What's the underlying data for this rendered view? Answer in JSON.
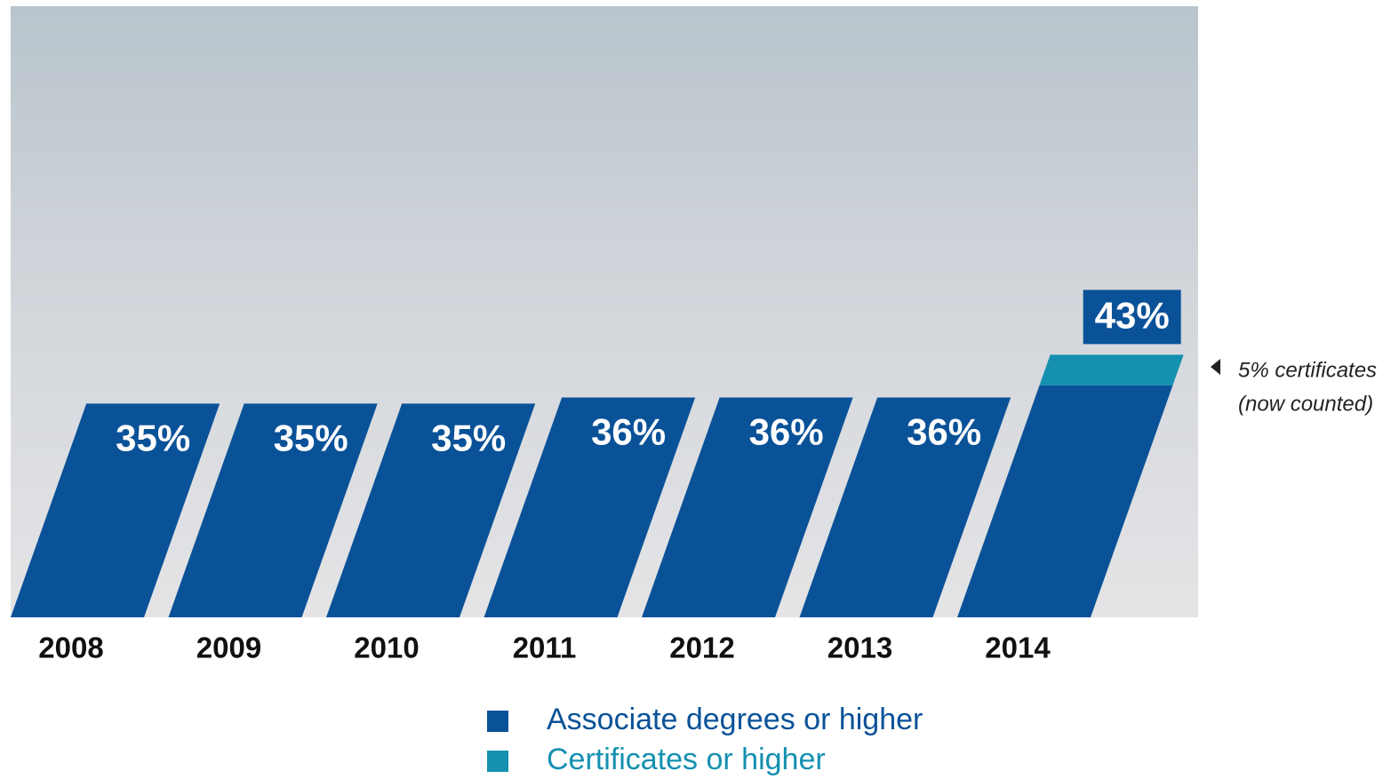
{
  "chart_data": {
    "type": "bar",
    "stacked": true,
    "categories": [
      "2008",
      "2009",
      "2010",
      "2011",
      "2012",
      "2013",
      "2014"
    ],
    "series": [
      {
        "name": "Associate degrees or higher",
        "color": "#0a5298",
        "values": [
          35,
          35,
          35,
          36,
          36,
          36,
          38
        ],
        "value_labels": [
          "35%",
          "35%",
          "35%",
          "36%",
          "36%",
          "36%",
          null
        ]
      },
      {
        "name": "Certificates or higher",
        "color": "#1590b0",
        "values": [
          null,
          null,
          null,
          null,
          null,
          null,
          5
        ]
      }
    ],
    "totals": [
      null,
      null,
      null,
      null,
      null,
      null,
      43
    ],
    "total_labels": [
      null,
      null,
      null,
      null,
      null,
      null,
      "43%"
    ],
    "ylim": [
      0,
      100
    ],
    "annotation": [
      "5% certificates",
      "(now counted)"
    ]
  }
}
